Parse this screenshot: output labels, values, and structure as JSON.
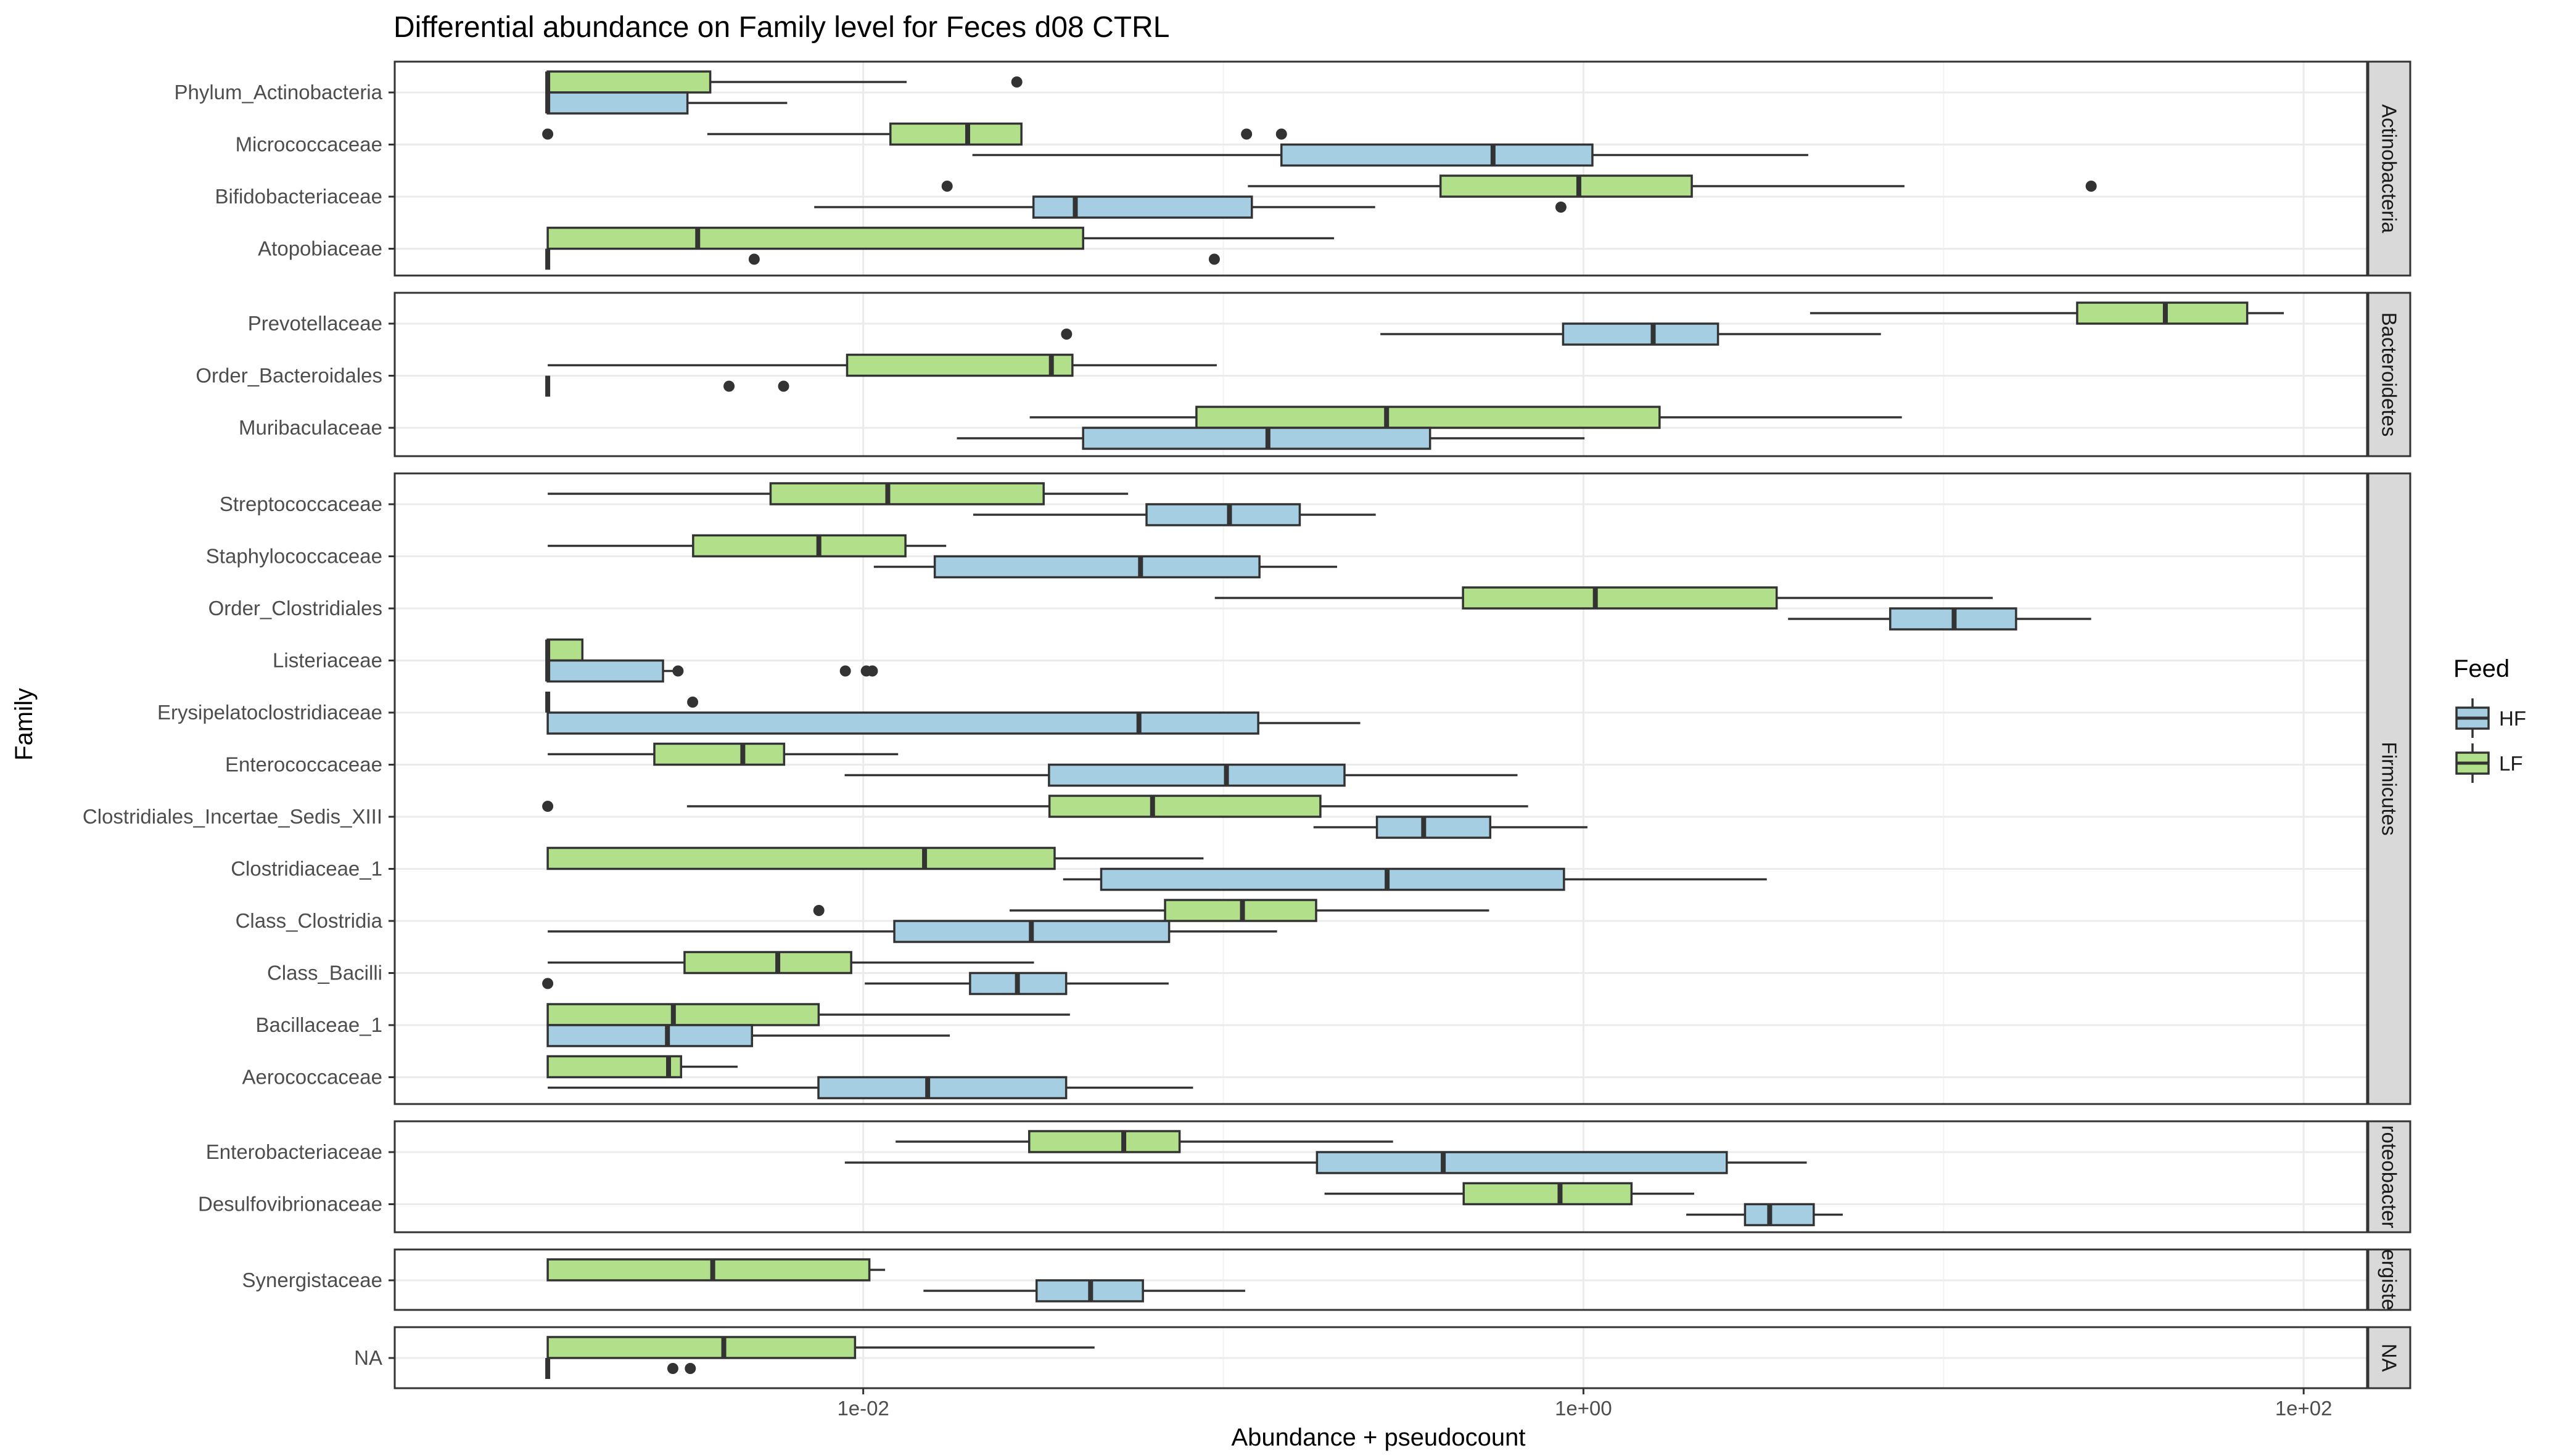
{
  "chart_data": {
    "type": "boxplot",
    "title": "Differential abundance on Family level for Feces d08 CTRL",
    "xlabel": "Abundance + pseudocount",
    "ylabel": "Family",
    "x_scale": "log10",
    "xlim": [
      0.0005,
      150
    ],
    "x_ticks": [
      0.01,
      1,
      100
    ],
    "x_tick_labels": [
      "1e-02",
      "1e+00",
      "1e+02"
    ],
    "grid": true,
    "legend": {
      "title": "Feed",
      "position": "right",
      "entries": [
        {
          "label": "HF",
          "color": "#a6cee3"
        },
        {
          "label": "LF",
          "color": "#b2df8a"
        }
      ]
    },
    "panels": [
      {
        "label": "Actinobacteria",
        "rows": [
          {
            "family": "Phylum_Actinobacteria",
            "LF": {
              "whislo": 0.00133,
              "q1": 0.00133,
              "med": 0.00133,
              "q3": 0.00376,
              "whishi": 0.0132,
              "outliers": [
                0.0267
              ]
            },
            "HF": {
              "whislo": 0.00133,
              "q1": 0.00133,
              "med": 0.00133,
              "q3": 0.00325,
              "whishi": 0.00615,
              "outliers": []
            }
          },
          {
            "family": "Micrococcaceae",
            "LF": {
              "whislo": 0.00369,
              "q1": 0.0119,
              "med": 0.0195,
              "q3": 0.0275,
              "whishi": 0.0275,
              "outliers": [
                0.00133,
                0.116,
                0.145
              ]
            },
            "HF": {
              "whislo": 0.0201,
              "q1": 0.145,
              "med": 0.561,
              "q3": 1.059,
              "whishi": 4.21,
              "outliers": []
            }
          },
          {
            "family": "Bifidobacteriaceae",
            "LF": {
              "whislo": 0.117,
              "q1": 0.401,
              "med": 0.971,
              "q3": 1.999,
              "whishi": 7.79,
              "outliers": [
                0.0171,
                25.7
              ]
            },
            "HF": {
              "whislo": 0.00731,
              "q1": 0.0297,
              "med": 0.0388,
              "q3": 0.12,
              "whishi": 0.264,
              "outliers": [
                0.866
              ]
            }
          },
          {
            "family": "Atopobiaceae",
            "LF": {
              "whislo": 0.00133,
              "q1": 0.00133,
              "med": 0.00347,
              "q3": 0.0408,
              "whishi": 0.203,
              "outliers": []
            },
            "HF": {
              "whislo": 0.00133,
              "q1": 0.00133,
              "med": 0.00133,
              "q3": 0.00133,
              "whishi": 0.00133,
              "outliers": [
                0.00498,
                0.0944
              ]
            }
          }
        ]
      },
      {
        "label": "Bacteroidetes",
        "rows": [
          {
            "family": "Prevotellaceae",
            "LF": {
              "whislo": 4.26,
              "q1": 23.5,
              "med": 41.3,
              "q3": 69.7,
              "whishi": 88.1,
              "outliers": []
            },
            "HF": {
              "whislo": 0.273,
              "q1": 0.878,
              "med": 1.562,
              "q3": 2.364,
              "whishi": 6.7,
              "outliers": [
                0.0367
              ]
            }
          },
          {
            "family": "Order_Bacteroidales",
            "LF": {
              "whislo": 0.00133,
              "q1": 0.00902,
              "med": 0.0333,
              "q3": 0.0381,
              "whishi": 0.0959,
              "outliers": []
            },
            "HF": {
              "whislo": 0.00133,
              "q1": 0.00133,
              "med": 0.00133,
              "q3": 0.00133,
              "whishi": 0.00133,
              "outliers": [
                0.00424,
                0.00601
              ]
            }
          },
          {
            "family": "Muribaculaceae",
            "LF": {
              "whislo": 0.029,
              "q1": 0.0842,
              "med": 0.284,
              "q3": 1.627,
              "whishi": 7.66,
              "outliers": []
            },
            "HF": {
              "whislo": 0.0182,
              "q1": 0.0408,
              "med": 0.133,
              "q3": 0.375,
              "whishi": 1.007,
              "outliers": []
            }
          }
        ]
      },
      {
        "label": "Firmicutes",
        "rows": [
          {
            "family": "Streptococcaceae",
            "LF": {
              "whislo": 0.00133,
              "q1": 0.00553,
              "med": 0.0117,
              "q3": 0.0317,
              "whishi": 0.0544,
              "outliers": []
            },
            "HF": {
              "whislo": 0.0202,
              "q1": 0.0612,
              "med": 0.104,
              "q3": 0.163,
              "whishi": 0.265,
              "outliers": []
            }
          },
          {
            "family": "Staphylococcaceae",
            "LF": {
              "whislo": 0.00133,
              "q1": 0.00337,
              "med": 0.00753,
              "q3": 0.0131,
              "whishi": 0.017,
              "outliers": []
            },
            "HF": {
              "whislo": 0.0107,
              "q1": 0.0158,
              "med": 0.0589,
              "q3": 0.126,
              "whishi": 0.207,
              "outliers": []
            }
          },
          {
            "family": "Order_Clostridiales",
            "LF": {
              "whislo": 0.0947,
              "q1": 0.463,
              "med": 1.079,
              "q3": 3.44,
              "whishi": 13.7,
              "outliers": []
            },
            "HF": {
              "whislo": 3.7,
              "q1": 7.11,
              "med": 10.7,
              "q3": 15.9,
              "whishi": 25.7,
              "outliers": []
            }
          },
          {
            "family": "Listeriaceae",
            "LF": {
              "whislo": 0.00133,
              "q1": 0.00133,
              "med": 0.00133,
              "q3": 0.00166,
              "whishi": 0.00166,
              "outliers": []
            },
            "HF": {
              "whislo": 0.00133,
              "q1": 0.00133,
              "med": 0.00133,
              "q3": 0.00278,
              "whishi": 0.00311,
              "outliers": [
                0.00306,
                0.00892,
                0.0102,
                0.0106
              ]
            }
          },
          {
            "family": "Erysipelatoclostridiaceae",
            "LF": {
              "whislo": 0.00133,
              "q1": 0.00133,
              "med": 0.00133,
              "q3": 0.00133,
              "whishi": 0.00133,
              "outliers": [
                0.00336
              ]
            },
            "HF": {
              "whislo": 0.00133,
              "q1": 0.00133,
              "med": 0.0583,
              "q3": 0.125,
              "whishi": 0.24,
              "outliers": []
            }
          },
          {
            "family": "Enterococcaceae",
            "LF": {
              "whislo": 0.00133,
              "q1": 0.00263,
              "med": 0.00463,
              "q3": 0.00603,
              "whishi": 0.0125,
              "outliers": []
            },
            "HF": {
              "whislo": 0.00888,
              "q1": 0.0328,
              "med": 0.102,
              "q3": 0.217,
              "whishi": 0.656,
              "outliers": []
            }
          },
          {
            "family": "Clostridiales_Incertae_Sedis_XIII",
            "LF": {
              "whislo": 0.00324,
              "q1": 0.0329,
              "med": 0.0636,
              "q3": 0.186,
              "whishi": 0.702,
              "outliers": [
                0.00133
              ]
            },
            "HF": {
              "whislo": 0.178,
              "q1": 0.267,
              "med": 0.36,
              "q3": 0.551,
              "whishi": 1.026,
              "outliers": []
            }
          },
          {
            "family": "Clostridiaceae_1",
            "LF": {
              "whislo": 0.00133,
              "q1": 0.00133,
              "med": 0.0148,
              "q3": 0.034,
              "whishi": 0.0881,
              "outliers": []
            },
            "HF": {
              "whislo": 0.0359,
              "q1": 0.0458,
              "med": 0.285,
              "q3": 0.883,
              "whishi": 3.23,
              "outliers": []
            }
          },
          {
            "family": "Class_Clostridia",
            "LF": {
              "whislo": 0.0255,
              "q1": 0.0689,
              "med": 0.113,
              "q3": 0.181,
              "whishi": 0.547,
              "outliers": [
                0.00753
              ]
            },
            "HF": {
              "whislo": 0.00133,
              "q1": 0.0122,
              "med": 0.0293,
              "q3": 0.0707,
              "whishi": 0.141,
              "outliers": []
            }
          },
          {
            "family": "Class_Bacilli",
            "LF": {
              "whislo": 0.00133,
              "q1": 0.00319,
              "med": 0.00579,
              "q3": 0.00926,
              "whishi": 0.0298,
              "outliers": []
            },
            "HF": {
              "whislo": 0.0101,
              "q1": 0.0198,
              "med": 0.0268,
              "q3": 0.0366,
              "whishi": 0.0705,
              "outliers": [
                0.00133
              ]
            }
          },
          {
            "family": "Bacillaceae_1",
            "LF": {
              "whislo": 0.00133,
              "q1": 0.00133,
              "med": 0.00297,
              "q3": 0.00752,
              "whishi": 0.0375,
              "outliers": []
            },
            "HF": {
              "whislo": 0.00133,
              "q1": 0.00133,
              "med": 0.00286,
              "q3": 0.00491,
              "whishi": 0.0174,
              "outliers": []
            }
          },
          {
            "family": "Aerococcaceae",
            "LF": {
              "whislo": 0.00133,
              "q1": 0.00133,
              "med": 0.00288,
              "q3": 0.00312,
              "whishi": 0.00448,
              "outliers": []
            },
            "HF": {
              "whislo": 0.00133,
              "q1": 0.00751,
              "med": 0.0151,
              "q3": 0.0366,
              "whishi": 0.0824,
              "outliers": []
            }
          }
        ]
      },
      {
        "label": "Proteobacteria",
        "rows": [
          {
            "family": "Enterobacteriaceae",
            "LF": {
              "whislo": 0.0123,
              "q1": 0.0289,
              "med": 0.0529,
              "q3": 0.0756,
              "whishi": 0.296,
              "outliers": []
            },
            "HF": {
              "whislo": 0.00889,
              "q1": 0.182,
              "med": 0.408,
              "q3": 2.5,
              "whishi": 4.17,
              "outliers": []
            }
          },
          {
            "family": "Desulfovibrionaceae",
            "LF": {
              "whislo": 0.191,
              "q1": 0.465,
              "med": 0.861,
              "q3": 1.36,
              "whishi": 2.03,
              "outliers": []
            },
            "HF": {
              "whislo": 1.93,
              "q1": 2.81,
              "med": 3.29,
              "q3": 4.36,
              "whishi": 5.25,
              "outliers": []
            }
          }
        ]
      },
      {
        "label": "Synergistetes",
        "rows": [
          {
            "family": "Synergistaceae",
            "LF": {
              "whislo": 0.00133,
              "q1": 0.00133,
              "med": 0.00382,
              "q3": 0.0104,
              "whishi": 0.0115,
              "outliers": []
            },
            "HF": {
              "whislo": 0.0147,
              "q1": 0.0303,
              "med": 0.0428,
              "q3": 0.0598,
              "whishi": 0.115,
              "outliers": []
            }
          }
        ]
      },
      {
        "label": "NA",
        "rows": [
          {
            "family": "NA",
            "LF": {
              "whislo": 0.00133,
              "q1": 0.00133,
              "med": 0.0041,
              "q3": 0.00949,
              "whishi": 0.0439,
              "outliers": []
            },
            "HF": {
              "whislo": 0.00133,
              "q1": 0.00133,
              "med": 0.00133,
              "q3": 0.00133,
              "whishi": 0.00133,
              "outliers": [
                0.00296,
                0.00331
              ]
            }
          }
        ]
      }
    ]
  },
  "panel_strip_texts": [
    "Actinobacteria",
    "Bacteroidetes",
    "Firmicutes",
    "roteobacter",
    "ergiste",
    "NA"
  ],
  "colors": {
    "HF": "#a6cee3",
    "LF": "#b2df8a",
    "stroke": "#333333",
    "strip_fill": "#d9d9d9",
    "grid": "#ebebeb"
  }
}
